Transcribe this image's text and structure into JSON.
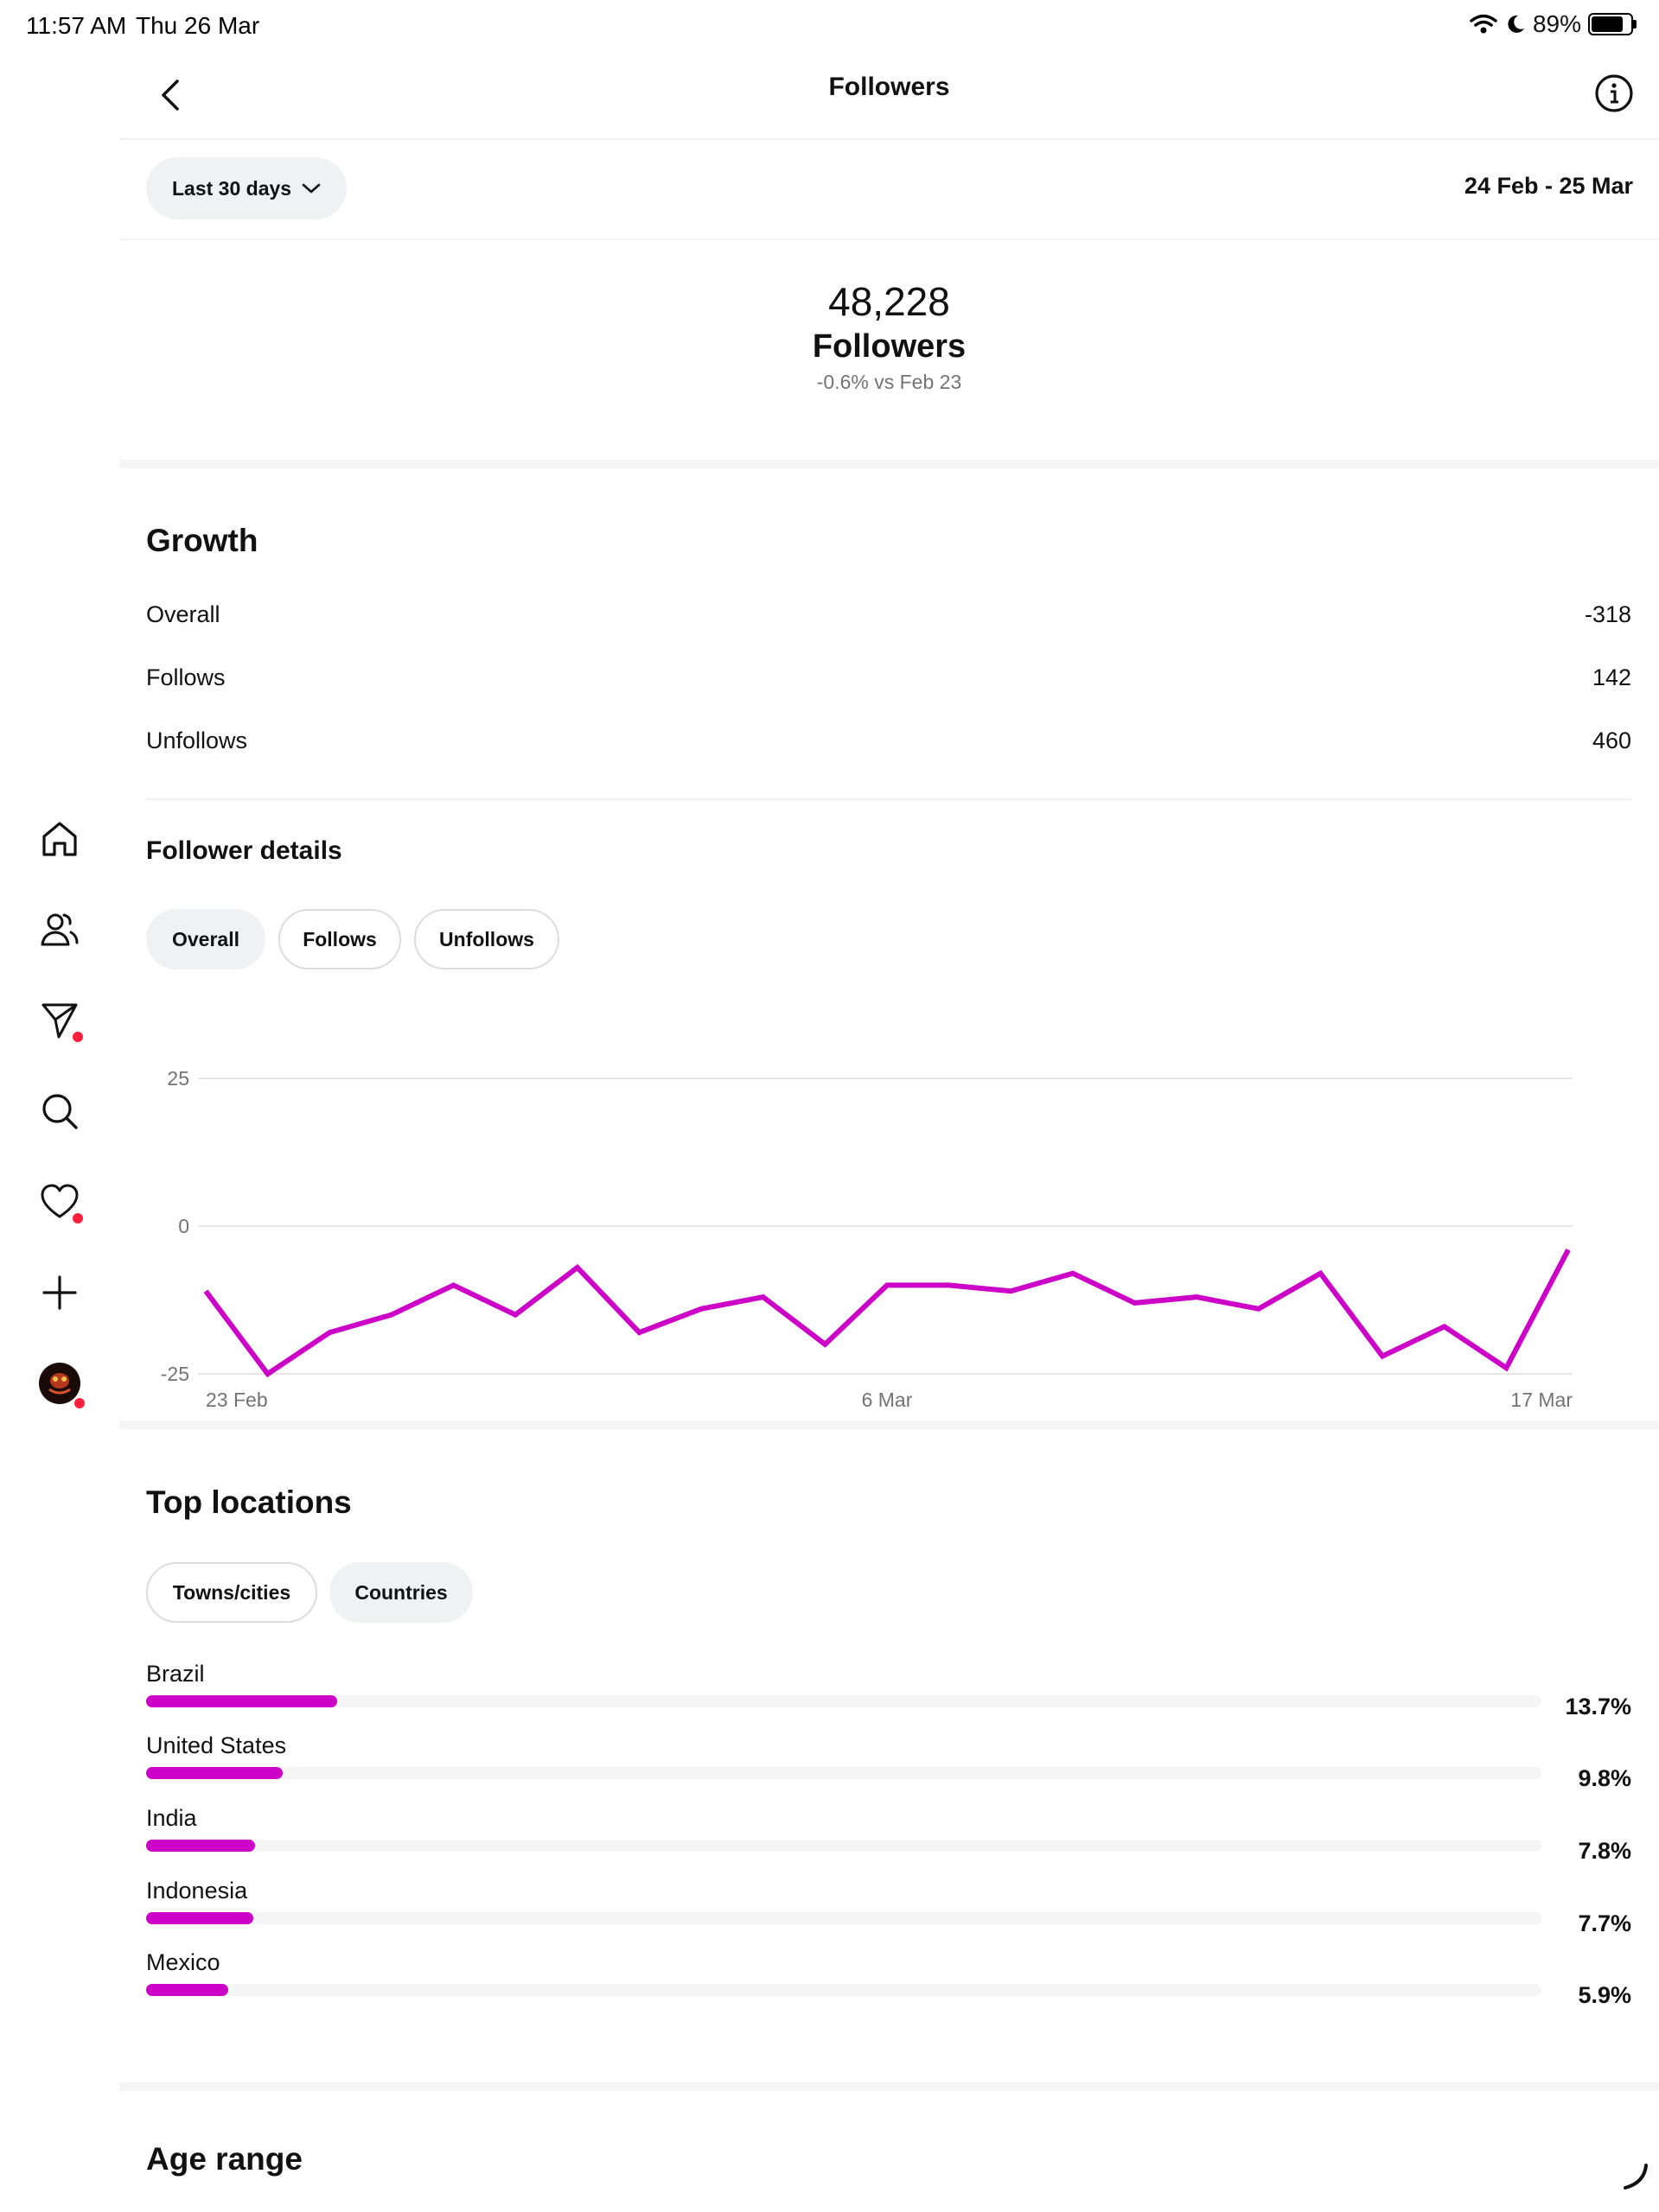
{
  "status": {
    "time": "11:57 AM",
    "date": "Thu 26 Mar",
    "battery": "89%",
    "battery_level": 0.89
  },
  "sidebar": {
    "icons": [
      "home-icon",
      "users-icon",
      "messages-icon",
      "search-icon",
      "heart-icon",
      "plus-icon",
      "avatar"
    ]
  },
  "header": {
    "title": "Followers"
  },
  "range": {
    "label": "Last 30 days",
    "dates": "24 Feb - 25 Mar"
  },
  "summary": {
    "count": "48,228",
    "label": "Followers",
    "change": "-0.6% vs Feb 23"
  },
  "growth": {
    "title": "Growth",
    "rows": [
      {
        "label": "Overall",
        "value": "-318"
      },
      {
        "label": "Follows",
        "value": "142"
      },
      {
        "label": "Unfollows",
        "value": "460"
      }
    ]
  },
  "details": {
    "title": "Follower details",
    "tabs": [
      "Overall",
      "Follows",
      "Unfollows"
    ],
    "active_tab": 0
  },
  "chart_data": {
    "type": "line",
    "series": [
      {
        "values": [
          -11,
          -25,
          -18,
          -15,
          -10,
          -15,
          -7,
          -18,
          -14,
          -12,
          -20,
          -10,
          -10,
          -11,
          -8,
          -13,
          -12,
          -14,
          -8,
          -22,
          -17,
          -24,
          -4
        ]
      }
    ],
    "ylim": [
      -25,
      25
    ],
    "yticks": [
      25,
      0,
      -25
    ],
    "yticklabels": [
      "25",
      "0",
      "-25"
    ],
    "xticklabels": [
      "23 Feb",
      "6 Mar",
      "17 Mar"
    ],
    "grid": true,
    "color": "#cc00c7"
  },
  "locations": {
    "title": "Top locations",
    "tabs": [
      "Towns/cities",
      "Countries"
    ],
    "active_tab": 1,
    "items": [
      {
        "name": "Brazil",
        "pct": "13.7%",
        "value": 13.7
      },
      {
        "name": "United States",
        "pct": "9.8%",
        "value": 9.8
      },
      {
        "name": "India",
        "pct": "7.8%",
        "value": 7.8
      },
      {
        "name": "Indonesia",
        "pct": "7.7%",
        "value": 7.7
      },
      {
        "name": "Mexico",
        "pct": "5.9%",
        "value": 5.9
      }
    ]
  },
  "age": {
    "title": "Age range"
  }
}
